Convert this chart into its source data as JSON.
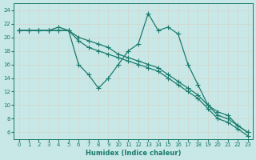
{
  "xlabel": "Humidex (Indice chaleur)",
  "background_color": "#c8e8e8",
  "grid_color": "#d0d8d0",
  "line_color": "#1a7a6a",
  "xlim": [
    -0.5,
    23.5
  ],
  "ylim": [
    5,
    25
  ],
  "yticks": [
    6,
    8,
    10,
    12,
    14,
    16,
    18,
    20,
    22,
    24
  ],
  "xticks": [
    0,
    1,
    2,
    3,
    4,
    5,
    6,
    7,
    8,
    9,
    10,
    11,
    12,
    13,
    14,
    15,
    16,
    17,
    18,
    19,
    20,
    21,
    22,
    23
  ],
  "jagged_x": [
    0,
    1,
    2,
    3,
    4,
    5,
    6,
    7,
    8,
    9,
    10,
    11,
    12,
    13,
    14,
    15,
    16,
    17,
    18,
    19,
    20,
    21,
    22,
    23
  ],
  "jagged_y": [
    21,
    21,
    21,
    21,
    21.5,
    21,
    16,
    14.5,
    12.5,
    14,
    16,
    18,
    19,
    23.5,
    21,
    21.5,
    20.5,
    16,
    13,
    10,
    9,
    8.5,
    7,
    6
  ],
  "line1_x": [
    0,
    1,
    2,
    3,
    4,
    5,
    6,
    7,
    8,
    9,
    10,
    11,
    12,
    13,
    14,
    15,
    16,
    17,
    18,
    19,
    20,
    21,
    22,
    23
  ],
  "line1_y": [
    21,
    21,
    21,
    21,
    21,
    21,
    20,
    19.5,
    19,
    18.5,
    17.5,
    17,
    16.5,
    16,
    15.5,
    14.5,
    13.5,
    12.5,
    11.5,
    10,
    8.5,
    8,
    7,
    6
  ],
  "line2_x": [
    0,
    1,
    2,
    3,
    4,
    5,
    6,
    7,
    8,
    9,
    10,
    11,
    12,
    13,
    14,
    15,
    16,
    17,
    18,
    19,
    20,
    21,
    22,
    23
  ],
  "line2_y": [
    21,
    21,
    21,
    21,
    21,
    21,
    19.5,
    18.5,
    18,
    17.5,
    17,
    16.5,
    16,
    15.5,
    15,
    14,
    13,
    12,
    11,
    9.5,
    8,
    7.5,
    6.5,
    5.5
  ]
}
